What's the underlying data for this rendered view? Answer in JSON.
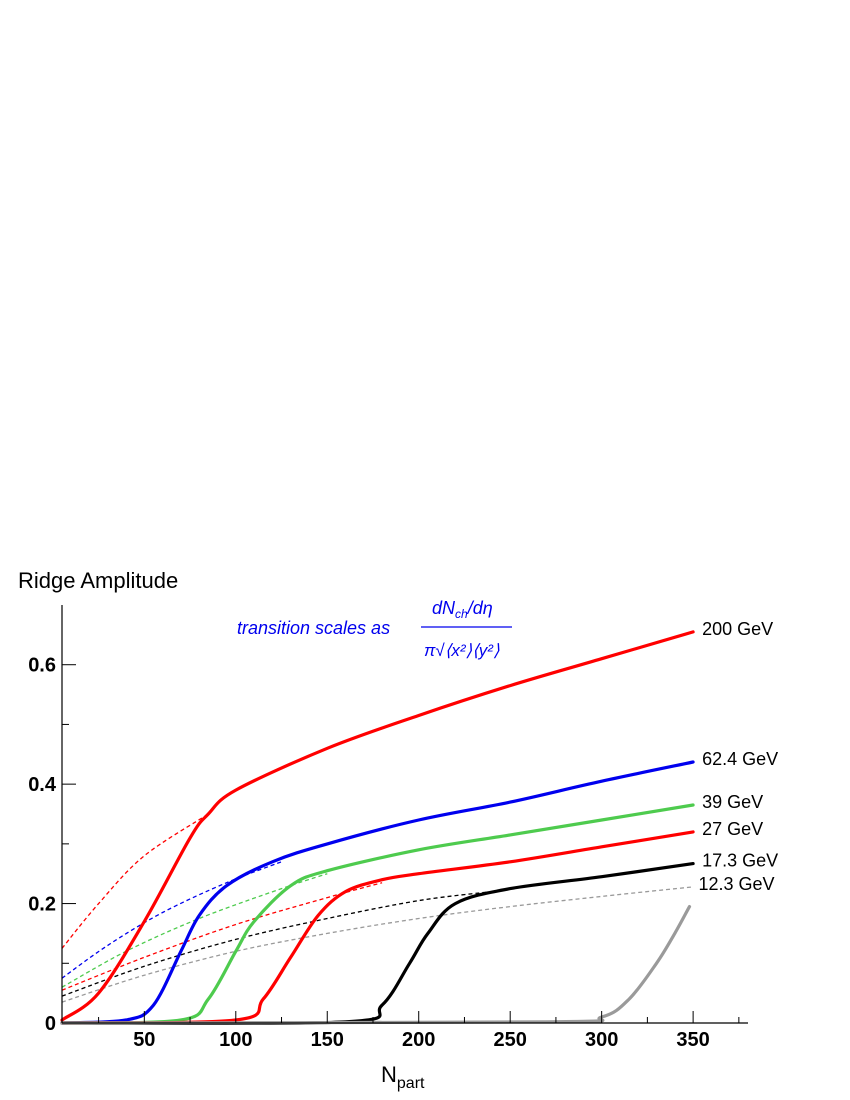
{
  "chart_data": {
    "type": "line",
    "ylabel": "Ridge Amplitude",
    "xlabel": "N",
    "xlabel_sub": "part",
    "xlim": [
      5,
      380
    ],
    "ylim": [
      0,
      0.7
    ],
    "x_ticks": [
      50,
      100,
      150,
      200,
      250,
      300,
      350
    ],
    "y_ticks": [
      0,
      0.2,
      0.4,
      0.6
    ],
    "y_tick_labels": [
      "0",
      "0.2",
      "0.4",
      "0.6"
    ],
    "grid": false,
    "legend": "inline labels at right end of curves",
    "annotation": {
      "text": "transition scales as",
      "numerator": "dN",
      "numerator_sub": "ch",
      "numerator_tail": "/dη",
      "denominator": "π√⟨x²⟩⟨y²⟩"
    },
    "series": [
      {
        "name": "200 GeV",
        "color": "#ff0000",
        "x": [
          5,
          25,
          50,
          75,
          85,
          100,
          150,
          200,
          250,
          300,
          350
        ],
        "y": [
          0.005,
          0.05,
          0.17,
          0.31,
          0.35,
          0.39,
          0.46,
          0.515,
          0.565,
          0.61,
          0.655
        ]
      },
      {
        "name": "62.4 GeV",
        "color": "#0000ee",
        "x": [
          5,
          40,
          55,
          70,
          80,
          95,
          120,
          150,
          200,
          250,
          300,
          350
        ],
        "y": [
          0.0,
          0.005,
          0.03,
          0.12,
          0.18,
          0.23,
          0.27,
          0.3,
          0.34,
          0.37,
          0.405,
          0.437
        ]
      },
      {
        "name": "39 GeV",
        "color": "#4ecb4e",
        "x": [
          5,
          70,
          85,
          100,
          110,
          130,
          150,
          200,
          250,
          300,
          350
        ],
        "y": [
          0.0,
          0.005,
          0.04,
          0.12,
          0.17,
          0.23,
          0.255,
          0.29,
          0.315,
          0.34,
          0.365
        ]
      },
      {
        "name": "27 GeV",
        "color": "#ff0000",
        "x": [
          5,
          100,
          115,
          130,
          145,
          160,
          180,
          200,
          250,
          300,
          350
        ],
        "y": [
          0.0,
          0.005,
          0.04,
          0.11,
          0.18,
          0.22,
          0.24,
          0.25,
          0.27,
          0.295,
          0.32
        ]
      },
      {
        "name": "17.3 GeV",
        "color": "#000000",
        "x": [
          5,
          160,
          180,
          195,
          205,
          220,
          250,
          300,
          350
        ],
        "y": [
          0.0,
          0.002,
          0.03,
          0.1,
          0.15,
          0.2,
          0.225,
          0.245,
          0.267
        ]
      },
      {
        "name": "12.3 GeV",
        "color": "#9a9a9a",
        "x": [
          5,
          270,
          300,
          315,
          330,
          340,
          348
        ],
        "y": [
          0.0,
          0.002,
          0.01,
          0.04,
          0.1,
          0.15,
          0.195
        ]
      }
    ],
    "dashed_series": [
      {
        "color": "#ff0000",
        "x": [
          5,
          25,
          50,
          85
        ],
        "y": [
          0.125,
          0.2,
          0.28,
          0.35
        ]
      },
      {
        "color": "#0000ee",
        "x": [
          5,
          30,
          60,
          95,
          125
        ],
        "y": [
          0.075,
          0.13,
          0.185,
          0.235,
          0.27
        ]
      },
      {
        "color": "#4ecb4e",
        "x": [
          5,
          40,
          80,
          125,
          150
        ],
        "y": [
          0.06,
          0.12,
          0.175,
          0.225,
          0.25
        ]
      },
      {
        "color": "#ff0000",
        "x": [
          5,
          50,
          100,
          150,
          180
        ],
        "y": [
          0.055,
          0.11,
          0.165,
          0.21,
          0.235
        ]
      },
      {
        "color": "#000000",
        "x": [
          5,
          50,
          100,
          150,
          200,
          240
        ],
        "y": [
          0.045,
          0.095,
          0.14,
          0.175,
          0.205,
          0.22
        ]
      },
      {
        "color": "#9a9a9a",
        "x": [
          5,
          50,
          100,
          150,
          200,
          250,
          300,
          350
        ],
        "y": [
          0.035,
          0.08,
          0.12,
          0.15,
          0.175,
          0.195,
          0.212,
          0.228
        ]
      }
    ]
  }
}
